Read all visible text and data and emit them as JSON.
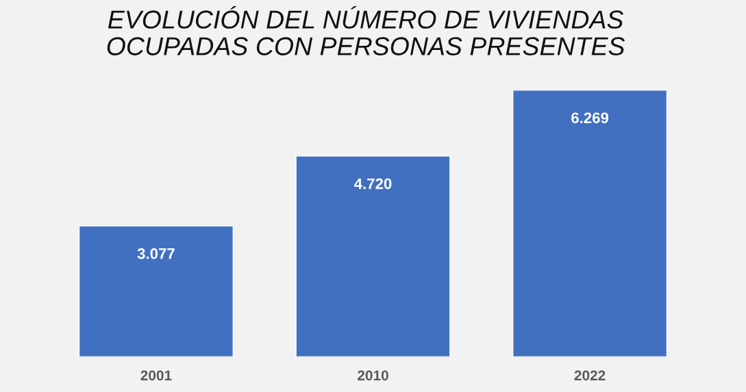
{
  "chart_data": {
    "type": "bar",
    "title": "EVOLUCIÓN DEL NÚMERO DE VIVIENDAS\nOCUPADAS CON PERSONAS PRESENTES",
    "categories": [
      "2001",
      "2010",
      "2022"
    ],
    "values": [
      3077,
      4720,
      6269
    ],
    "value_labels": [
      "3.077",
      "4.720",
      "6.269"
    ],
    "color": "#4270c0",
    "grid": false,
    "legend": false
  }
}
